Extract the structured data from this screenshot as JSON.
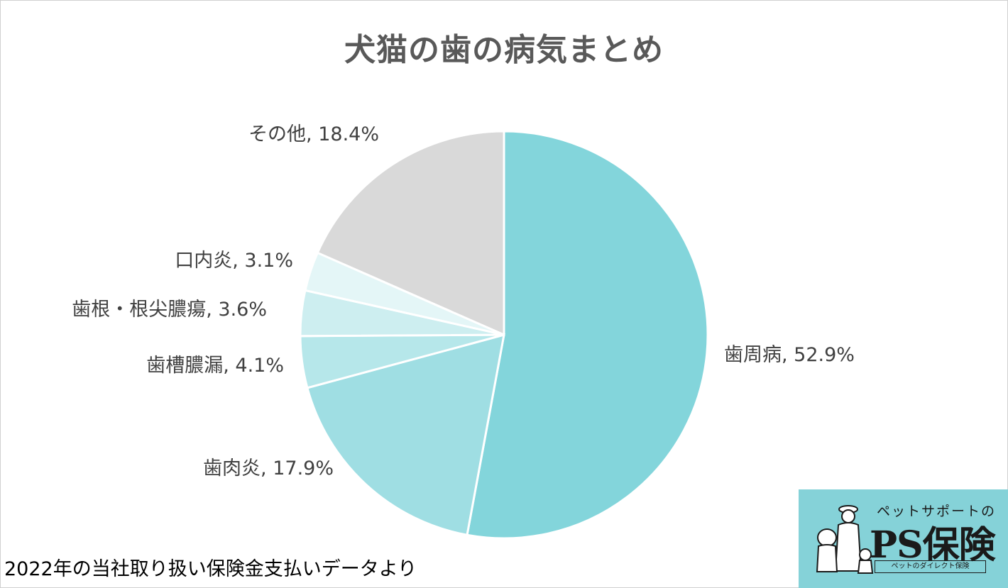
{
  "chart_data": {
    "type": "pie",
    "title": "犬猫の歯の病気まとめ",
    "slices": [
      {
        "label": "歯周病",
        "value": 52.9,
        "display": "歯周病, 52.9%",
        "color": "#83d5db"
      },
      {
        "label": "歯肉炎",
        "value": 17.9,
        "display": "歯肉炎, 17.9%",
        "color": "#9fdee3"
      },
      {
        "label": "歯槽膿漏",
        "value": 4.1,
        "display": "歯槽膿漏, 4.1%",
        "color": "#b6e7ea"
      },
      {
        "label": "歯根・根尖膿瘍",
        "value": 3.6,
        "display": "歯根・根尖膿瘍, 3.6%",
        "color": "#cdeef0"
      },
      {
        "label": "口内炎",
        "value": 3.1,
        "display": "口内炎, 3.1%",
        "color": "#e4f6f7"
      },
      {
        "label": "その他",
        "value": 18.4,
        "display": "その他, 18.4%",
        "color": "#d9d9d9"
      }
    ]
  },
  "footnote": "2022年の当社取り扱い保険金支払いデータより",
  "logo": {
    "tagline": "ペットサポートの",
    "name": "PS保険",
    "subtitle": "ペットのダイレクト保険"
  }
}
